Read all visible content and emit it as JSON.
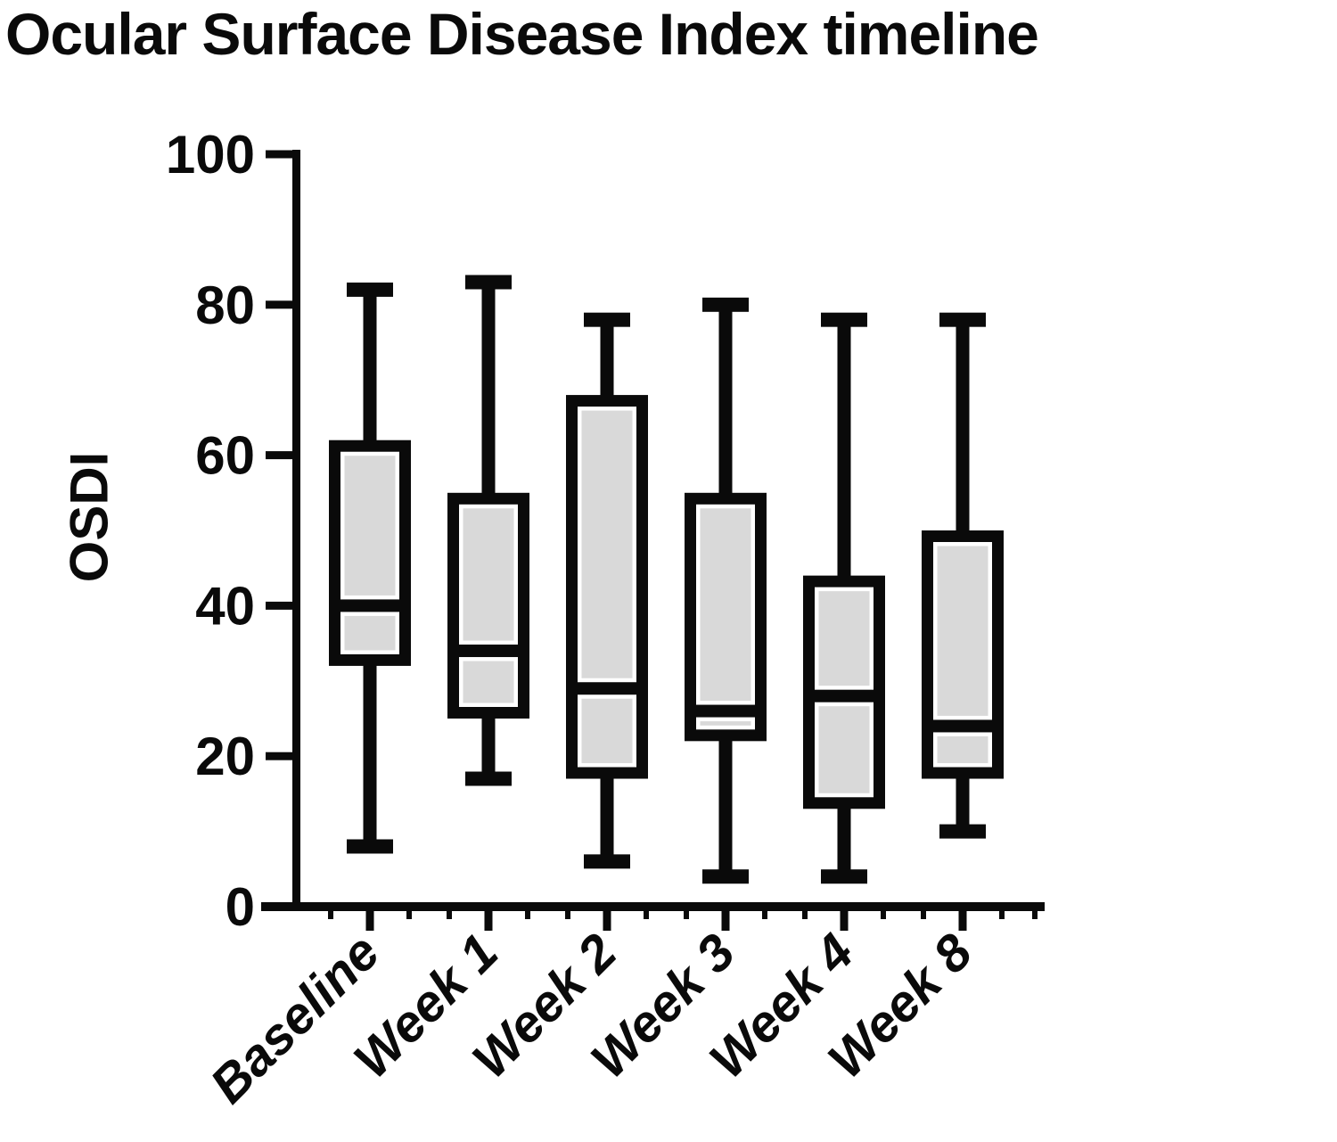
{
  "title": "Ocular Surface Disease Index timeline",
  "chart_data": {
    "type": "box",
    "title": "Ocular Surface Disease Index timeline",
    "xlabel": "",
    "ylabel": "OSDI",
    "ylim": [
      0,
      100
    ],
    "yticks": [
      0,
      20,
      40,
      60,
      80,
      100
    ],
    "grid": false,
    "legend": "none",
    "categories": [
      "Baseline",
      "Week 1",
      "Week 2",
      "Week 3",
      "Week 4",
      "Week 8"
    ],
    "series": [
      {
        "category": "Baseline",
        "min": 8,
        "q1": 32,
        "median": 40,
        "q3": 62,
        "max": 82
      },
      {
        "category": "Week 1",
        "min": 17,
        "q1": 25,
        "median": 34,
        "q3": 55,
        "max": 83
      },
      {
        "category": "Week 2",
        "min": 6,
        "q1": 17,
        "median": 29,
        "q3": 68,
        "max": 78
      },
      {
        "category": "Week 3",
        "min": 4,
        "q1": 22,
        "median": 26,
        "q3": 55,
        "max": 80
      },
      {
        "category": "Week 4",
        "min": 4,
        "q1": 13,
        "median": 28,
        "q3": 44,
        "max": 78
      },
      {
        "category": "Week 8",
        "min": 10,
        "q1": 17,
        "median": 24,
        "q3": 50,
        "max": 78
      }
    ],
    "colors": {
      "box_fill": "#d9d9d9",
      "box_inner_outline": "#ffffff",
      "line": "#0a0a0a",
      "background": "#ffffff"
    }
  }
}
